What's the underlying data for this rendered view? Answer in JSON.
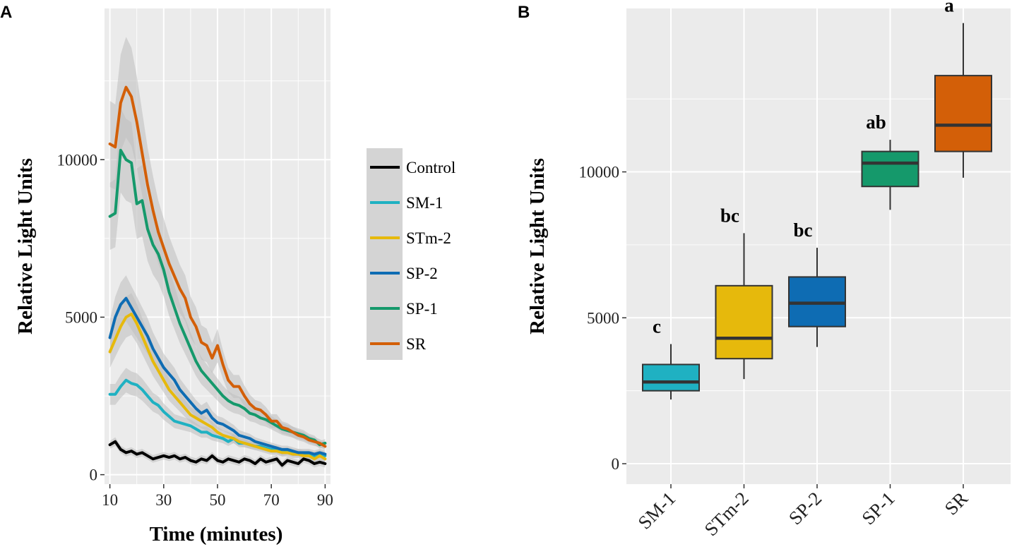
{
  "panels": {
    "a_label": "A",
    "b_label": "B"
  },
  "colors": {
    "Control": "#000000",
    "SM-1": "#1fb1c2",
    "STm-2": "#e6b90c",
    "SP-2": "#0e6cb3",
    "SP-1": "#15996b",
    "SR": "#d35f08",
    "panel_bg": "#ebebeb",
    "grid": "#ffffff",
    "ribbon": "#bdbdbd",
    "legend_bg": "#d4d4d4"
  },
  "chart_data": [
    {
      "id": "A",
      "type": "line",
      "title": "",
      "xlabel": "Time (minutes)",
      "ylabel": "Relative Light Units",
      "xlim": [
        8,
        92
      ],
      "ylim": [
        -300,
        14800
      ],
      "xticks": [
        10,
        30,
        50,
        70,
        90
      ],
      "yticks": [
        0,
        5000,
        10000
      ],
      "legend": [
        "Control",
        "SM-1",
        "STm-2",
        "SP-2",
        "SP-1",
        "SR"
      ],
      "x": [
        10,
        12,
        14,
        16,
        18,
        20,
        22,
        24,
        26,
        28,
        30,
        32,
        34,
        36,
        38,
        40,
        42,
        44,
        46,
        48,
        50,
        52,
        54,
        56,
        58,
        60,
        62,
        64,
        66,
        68,
        70,
        72,
        74,
        76,
        78,
        80,
        82,
        84,
        86,
        88,
        90
      ],
      "series": [
        {
          "name": "Control",
          "values": [
            950,
            1050,
            800,
            700,
            750,
            650,
            700,
            600,
            500,
            550,
            600,
            550,
            600,
            500,
            550,
            450,
            400,
            500,
            450,
            600,
            450,
            400,
            500,
            450,
            400,
            500,
            450,
            350,
            500,
            400,
            450,
            500,
            300,
            450,
            400,
            350,
            500,
            450,
            350,
            400,
            350
          ]
        },
        {
          "name": "SM-1",
          "values": [
            2550,
            2550,
            2800,
            3000,
            2900,
            2850,
            2700,
            2500,
            2300,
            2200,
            2000,
            1850,
            1700,
            1650,
            1600,
            1550,
            1450,
            1350,
            1350,
            1250,
            1200,
            1150,
            1050,
            1150,
            1000,
            1000,
            950,
            900,
            900,
            850,
            800,
            800,
            700,
            750,
            700,
            700,
            650,
            650,
            600,
            650,
            600
          ]
        },
        {
          "name": "STm-2",
          "values": [
            3900,
            4300,
            4700,
            5000,
            5100,
            4800,
            4400,
            4000,
            3600,
            3300,
            3000,
            2700,
            2500,
            2300,
            2100,
            1900,
            1800,
            1700,
            1600,
            1500,
            1350,
            1250,
            1200,
            1150,
            1050,
            1000,
            950,
            900,
            850,
            800,
            750,
            750,
            700,
            700,
            650,
            650,
            600,
            600,
            500,
            600,
            500
          ]
        },
        {
          "name": "SP-2",
          "values": [
            4350,
            5000,
            5400,
            5600,
            5300,
            5000,
            4700,
            4400,
            4000,
            3700,
            3400,
            3200,
            3000,
            2700,
            2500,
            2300,
            2100,
            1950,
            2050,
            1800,
            1650,
            1600,
            1500,
            1400,
            1250,
            1200,
            1150,
            1050,
            1000,
            950,
            900,
            850,
            800,
            800,
            750,
            700,
            700,
            700,
            650,
            700,
            650
          ]
        },
        {
          "name": "SP-1",
          "values": [
            8200,
            8300,
            10300,
            10000,
            9900,
            8600,
            8700,
            7800,
            7300,
            7000,
            6500,
            5800,
            5300,
            4800,
            4400,
            4000,
            3600,
            3300,
            3100,
            2900,
            2700,
            2500,
            2350,
            2250,
            2200,
            2100,
            1950,
            1900,
            1800,
            1750,
            1650,
            1550,
            1450,
            1400,
            1350,
            1300,
            1250,
            1150,
            1100,
            950,
            1000
          ]
        },
        {
          "name": "SR",
          "values": [
            10500,
            10400,
            11800,
            12300,
            12000,
            11200,
            10200,
            9200,
            8400,
            7700,
            7200,
            6700,
            6300,
            5900,
            5600,
            5000,
            4700,
            4200,
            4100,
            3700,
            4100,
            3500,
            3000,
            2800,
            2800,
            2500,
            2250,
            2100,
            2050,
            1900,
            1700,
            1700,
            1500,
            1450,
            1350,
            1250,
            1200,
            1100,
            1050,
            1000,
            900
          ]
        }
      ]
    },
    {
      "id": "B",
      "type": "box",
      "title": "",
      "xlabel": "",
      "ylabel": "Relative Light Units",
      "ylim": [
        -700,
        15600
      ],
      "yticks": [
        0,
        5000,
        10000
      ],
      "categories": [
        "SM-1",
        "STm-2",
        "SP-2",
        "SP-1",
        "SR"
      ],
      "boxes": [
        {
          "name": "SM-1",
          "min": 2200,
          "q1": 2500,
          "median": 2800,
          "q3": 3400,
          "max": 4100,
          "label": "c"
        },
        {
          "name": "STm-2",
          "min": 2900,
          "q1": 3600,
          "median": 4300,
          "q3": 6100,
          "max": 7900,
          "label": "bc"
        },
        {
          "name": "SP-2",
          "min": 4000,
          "q1": 4700,
          "median": 5500,
          "q3": 6400,
          "max": 7400,
          "label": "bc"
        },
        {
          "name": "SP-1",
          "min": 8700,
          "q1": 9500,
          "median": 10300,
          "q3": 10700,
          "max": 11100,
          "label": "ab"
        },
        {
          "name": "SR",
          "min": 9800,
          "q1": 10700,
          "median": 11600,
          "q3": 13300,
          "max": 15100,
          "label": "a"
        }
      ]
    }
  ]
}
